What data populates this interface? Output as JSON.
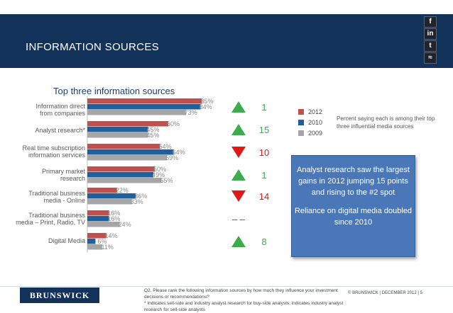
{
  "page": {
    "title": "INFORMATION SOURCES",
    "section_title": "Top three information sources"
  },
  "social_icons": [
    {
      "name": "facebook-icon",
      "glyph": "f"
    },
    {
      "name": "linkedin-icon",
      "glyph": "in"
    },
    {
      "name": "twitter-icon",
      "glyph": "t"
    },
    {
      "name": "rss-icon",
      "glyph": "≈"
    }
  ],
  "chart_data": {
    "type": "bar",
    "orientation": "horizontal",
    "title": "Top three information sources",
    "categories": [
      [
        "Information direct",
        "from companies"
      ],
      [
        "Analyst research*"
      ],
      [
        "Real time subscription",
        "information services"
      ],
      [
        "Primary market",
        "research"
      ],
      [
        "Traditional business",
        "media - Online"
      ],
      [
        "Traditional business",
        "media – Print, Radio, TV"
      ],
      [
        "Digital Media"
      ]
    ],
    "series": [
      {
        "name": "2012",
        "color": "#c0504d",
        "values": [
          85,
          60,
          54,
          50,
          22,
          16,
          14
        ]
      },
      {
        "name": "2010",
        "color": "#1f5f9e",
        "values": [
          84,
          45,
          64,
          49,
          36,
          16,
          6
        ]
      },
      {
        "name": "2009",
        "color": "#a6a6a6",
        "values": [
          73,
          45,
          59,
          55,
          33,
          24,
          11
        ]
      }
    ],
    "value_suffix": "%",
    "xlim": [
      0,
      100
    ],
    "changes": [
      {
        "direction": "up",
        "value": "1"
      },
      {
        "direction": "up",
        "value": "15"
      },
      {
        "direction": "down",
        "value": "10"
      },
      {
        "direction": "up",
        "value": "1"
      },
      {
        "direction": "down",
        "value": "14"
      },
      {
        "direction": "none",
        "value": "– –"
      },
      {
        "direction": "up",
        "value": "8"
      }
    ],
    "legend_position": "right",
    "colors": {
      "up": "#3cab4c",
      "down": "#e01818",
      "up_text": "#3cab4c",
      "down_text": "#e01818",
      "none_text": "#555555"
    }
  },
  "legend": {
    "items": [
      "2012",
      "2010",
      "2009"
    ],
    "note": "Percent saying each is among their top three influential media sources"
  },
  "callout": {
    "line1": "Analyst research saw the largest gains in 2012 jumping 15 points and rising to the #2 spot",
    "line2": "Reliance on digital media doubled since 2010"
  },
  "footer": {
    "logo": "BRUNSWICK",
    "question": "Q2. Please rank the following information sources by how much they influence your investment decisions or recommendations?",
    "note": "* Indicates sell-side and industry analyst research for buy-side analysts; indicates industry analyst research for sell-side analysts",
    "copyright": "©  BRUNSWICK  |  DECEMBER 2012  |  5"
  }
}
